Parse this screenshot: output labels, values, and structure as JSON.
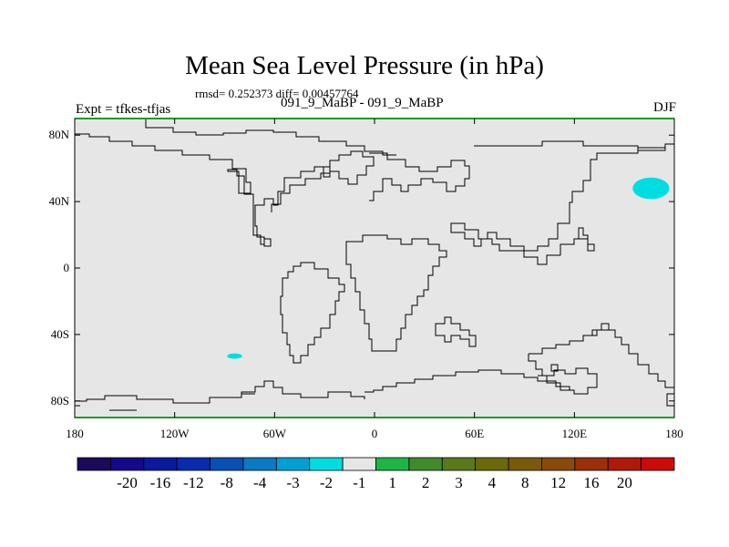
{
  "title": "Mean Sea Level Pressure (in hPa)",
  "stats": "rmsd= 0.252373 diff= 0.00457764",
  "left_label": "Expt = tfkes-tfjas",
  "center_label": "091_9_MaBP - 091_9_MaBP",
  "right_label": "DJF",
  "colors": {
    "map_background": "#e6e6e6",
    "coastline": "#000000",
    "anomaly_cyan": "#00dde0",
    "border_green": "#1a9c2a"
  },
  "map": {
    "lon_ticks": [
      "180",
      "120W",
      "60W",
      "0",
      "60E",
      "120E",
      "180"
    ],
    "lat_ticks": [
      "80N",
      "40N",
      "0",
      "40S",
      "80S"
    ],
    "lon_values": [
      -180,
      -120,
      -60,
      0,
      60,
      120,
      180
    ],
    "lat_values": [
      80,
      40,
      0,
      -40,
      -80
    ],
    "anomaly_regions": [
      {
        "lon_center": 166,
        "lat_center": 48,
        "lon_halfwidth": 11,
        "lat_halfwidth": 6.5
      },
      {
        "lon_center": -84,
        "lat_center": -53,
        "lon_halfwidth": 4.5,
        "lat_halfwidth": 1.6
      }
    ]
  },
  "colorbar": {
    "colors": [
      "#1b0a5a",
      "#120a88",
      "#0a1a9c",
      "#0a2ab0",
      "#0a50b4",
      "#0a7ac4",
      "#00a0d4",
      "#00dde0",
      "#e6e6e6",
      "#1fb545",
      "#3f8a2a",
      "#5a7a1a",
      "#6a6a0a",
      "#7a5a0a",
      "#8a4a0a",
      "#9a300a",
      "#b0180a",
      "#cc0a0a"
    ],
    "labels": [
      "-20",
      "-16",
      "-12",
      "-8",
      "-4",
      "-3",
      "-2",
      "-1",
      "1",
      "2",
      "3",
      "4",
      "8",
      "12",
      "16",
      "20"
    ]
  }
}
